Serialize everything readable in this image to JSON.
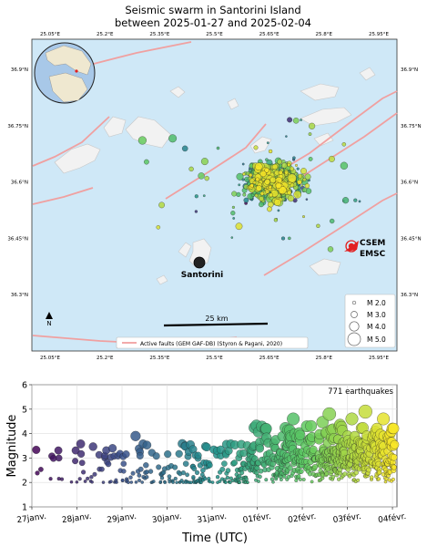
{
  "title": {
    "line1": "Seismic swarm in Santorini Island",
    "line2": "between 2025-01-27 and 2025-02-04"
  },
  "map": {
    "lon_ticks": [
      "25.05°E",
      "25.2°E",
      "25.35°E",
      "25.5°E",
      "25.65°E",
      "25.8°E",
      "25.95°E"
    ],
    "lat_ticks": [
      "36.9°N",
      "36.75°N",
      "36.6°N",
      "36.45°N",
      "36.3°N"
    ],
    "lon_range": [
      25.0,
      26.0
    ],
    "lat_range": [
      36.15,
      36.98
    ],
    "place_label": "Santorini",
    "north_label": "N",
    "scale_label": "25 km",
    "agency_labels": [
      "CSEM",
      "EMSC"
    ],
    "legend_magnitudes": [
      "M 2.0",
      "M 3.0",
      "M 4.0",
      "M 5.0"
    ],
    "faults_legend": "Active faults (GEM GAF-DB) (Styron & Pagani, 2020)",
    "colors": {
      "sea": "#cfe8f7",
      "land": "#f2f2f2",
      "fault": "#f0a0a0",
      "agency": "#e22020"
    }
  },
  "chart_data": {
    "type": "scatter",
    "annotation": "771 earthquakes",
    "xlabel": "Time (UTC)",
    "ylabel": "Magnitude",
    "ylim": [
      1,
      6
    ],
    "yticks": [
      "1",
      "2",
      "3",
      "4",
      "5",
      "6"
    ],
    "xticks": [
      "27janv.",
      "28janv.",
      "29janv.",
      "30janv.",
      "31janv.",
      "01févr.",
      "02févr.",
      "03févr.",
      "04févr."
    ],
    "xlim_days": [
      0,
      8.1
    ],
    "colormap": "viridis",
    "notable_points": [
      {
        "day": 0.6,
        "mag": 3.0
      },
      {
        "day": 2.3,
        "mag": 3.9
      },
      {
        "day": 3.4,
        "mag": 3.5
      },
      {
        "day": 4.3,
        "mag": 3.2
      },
      {
        "day": 4.7,
        "mag": 3.2
      },
      {
        "day": 5.2,
        "mag": 4.2
      },
      {
        "day": 5.8,
        "mag": 4.6
      },
      {
        "day": 6.1,
        "mag": 4.3
      },
      {
        "day": 6.6,
        "mag": 4.8
      },
      {
        "day": 7.1,
        "mag": 4.6
      },
      {
        "day": 7.4,
        "mag": 4.9
      },
      {
        "day": 7.8,
        "mag": 4.6
      }
    ],
    "grid": true
  }
}
